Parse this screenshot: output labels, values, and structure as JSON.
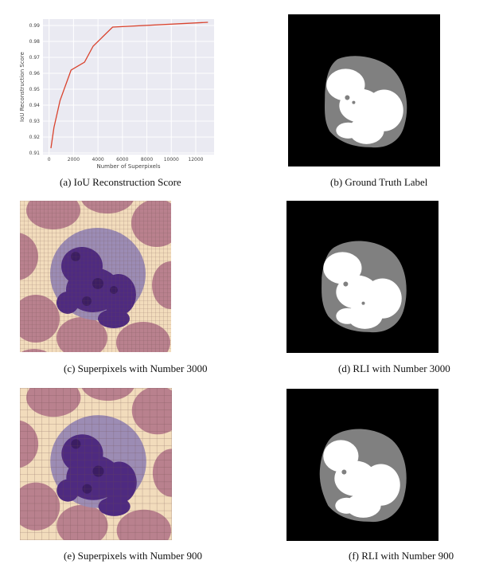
{
  "chart_data": {
    "type": "line",
    "x": [
      150,
      400,
      900,
      1800,
      2900,
      3600,
      5200,
      13000
    ],
    "values": [
      0.913,
      0.926,
      0.943,
      0.962,
      0.967,
      0.977,
      0.989,
      0.992
    ],
    "xlabel": "Number of Superpixels",
    "ylabel": "IoU Reconstruction Score",
    "xlim": [
      -500,
      13500
    ],
    "ylim": [
      0.909,
      0.994
    ],
    "xticks": [
      0,
      2000,
      4000,
      6000,
      8000,
      10000,
      12000
    ],
    "xtick_labels": [
      "0",
      "2000",
      "4000",
      "6000",
      "8000",
      "10000",
      "12000"
    ],
    "yticks": [
      0.91,
      0.92,
      0.93,
      0.94,
      0.95,
      0.96,
      0.97,
      0.98,
      0.99
    ],
    "ytick_labels": [
      "0.91",
      "0.92",
      "0.93",
      "0.94",
      "0.95",
      "0.96",
      "0.97",
      "0.98",
      "0.99"
    ],
    "line_color": "#d9432e",
    "background": "#eaeaf2",
    "grid": true
  },
  "captions": {
    "a": "(a)  IoU Reconstruction Score",
    "b": "(b)  Ground Truth Label",
    "c": "(c)  Superpixels with Number 3000",
    "d": "(d)  RLI with Number 3000",
    "e": "(e)  Superpixels with Number 900",
    "f": "(f)  RLI with Number 900"
  },
  "colors": {
    "mask_background": "#000000",
    "mask_cell": "#808080",
    "mask_nucleus": "#ffffff",
    "stain_background": "#f2dcbc",
    "stain_rbc": "#b9818e",
    "stain_nucleus": "#4e2a80",
    "stain_cytoplasm": "#9c8cb4"
  }
}
